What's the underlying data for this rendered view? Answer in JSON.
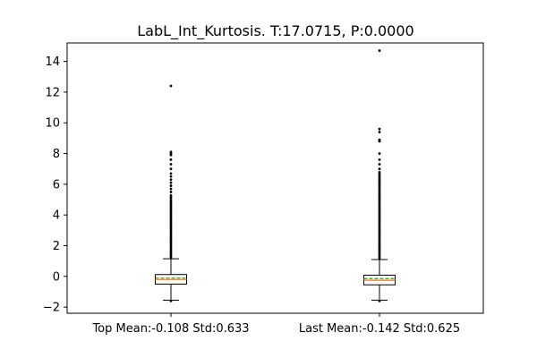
{
  "chart_data": {
    "type": "box",
    "title": "LabL_Int_Kurtosis. T:17.0715, P:0.0000",
    "xlabel": "",
    "ylabel": "",
    "ylim": [
      -2.4,
      15.2
    ],
    "yticks": [
      -2,
      0,
      2,
      4,
      6,
      8,
      10,
      12,
      14
    ],
    "grid": false,
    "colors": {
      "median": "#ff7f0e",
      "mean": "#2ca02c",
      "box": "#000000"
    },
    "boxes": [
      {
        "label": "Top Mean:-0.108 Std:0.633",
        "whisker_low": -1.55,
        "q1": -0.5,
        "median": -0.2,
        "mean": -0.108,
        "q3": 0.12,
        "whisker_high": 1.15,
        "fliers_dense_range": [
          1.15,
          5.3
        ],
        "fliers": [
          5.5,
          5.7,
          5.9,
          6.1,
          6.3,
          6.5,
          6.7,
          7.0,
          7.3,
          7.6,
          7.9,
          8.0,
          8.1,
          12.4,
          -1.6
        ]
      },
      {
        "label": "Last Mean:-0.142 Std:0.625",
        "whisker_low": -1.55,
        "q1": -0.55,
        "median": -0.25,
        "mean": -0.142,
        "q3": 0.08,
        "whisker_high": 1.1,
        "fliers_dense_range": [
          1.1,
          6.8
        ],
        "fliers": [
          7.0,
          7.3,
          7.6,
          8.0,
          8.8,
          8.9,
          9.4,
          9.6,
          14.7,
          -1.6
        ]
      }
    ]
  }
}
